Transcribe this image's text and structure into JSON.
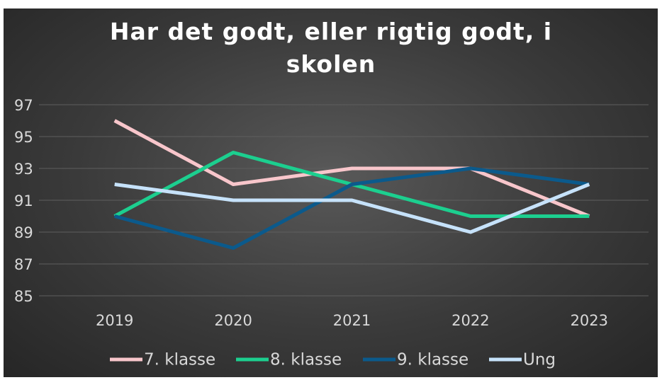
{
  "chart_data": {
    "type": "line",
    "title": "Har det godt, eller rigtig godt, i skolen",
    "categories": [
      "2019",
      "2020",
      "2021",
      "2022",
      "2023"
    ],
    "series": [
      {
        "name": "7. klasse",
        "color": "#f8c6cb",
        "values": [
          96,
          92,
          93,
          93,
          90
        ]
      },
      {
        "name": "8. klasse",
        "color": "#1ccf8f",
        "values": [
          90,
          94,
          92,
          90,
          90
        ]
      },
      {
        "name": "9. klasse",
        "color": "#0b5a8c",
        "values": [
          90,
          88,
          92,
          93,
          92
        ]
      },
      {
        "name": "Ung",
        "color": "#c6e2fa",
        "values": [
          92,
          91,
          91,
          89,
          92
        ]
      }
    ],
    "ylim": [
      85,
      97
    ],
    "yticks": [
      85,
      87,
      89,
      91,
      93,
      95,
      97
    ],
    "grid": true,
    "legend": "bottom"
  }
}
